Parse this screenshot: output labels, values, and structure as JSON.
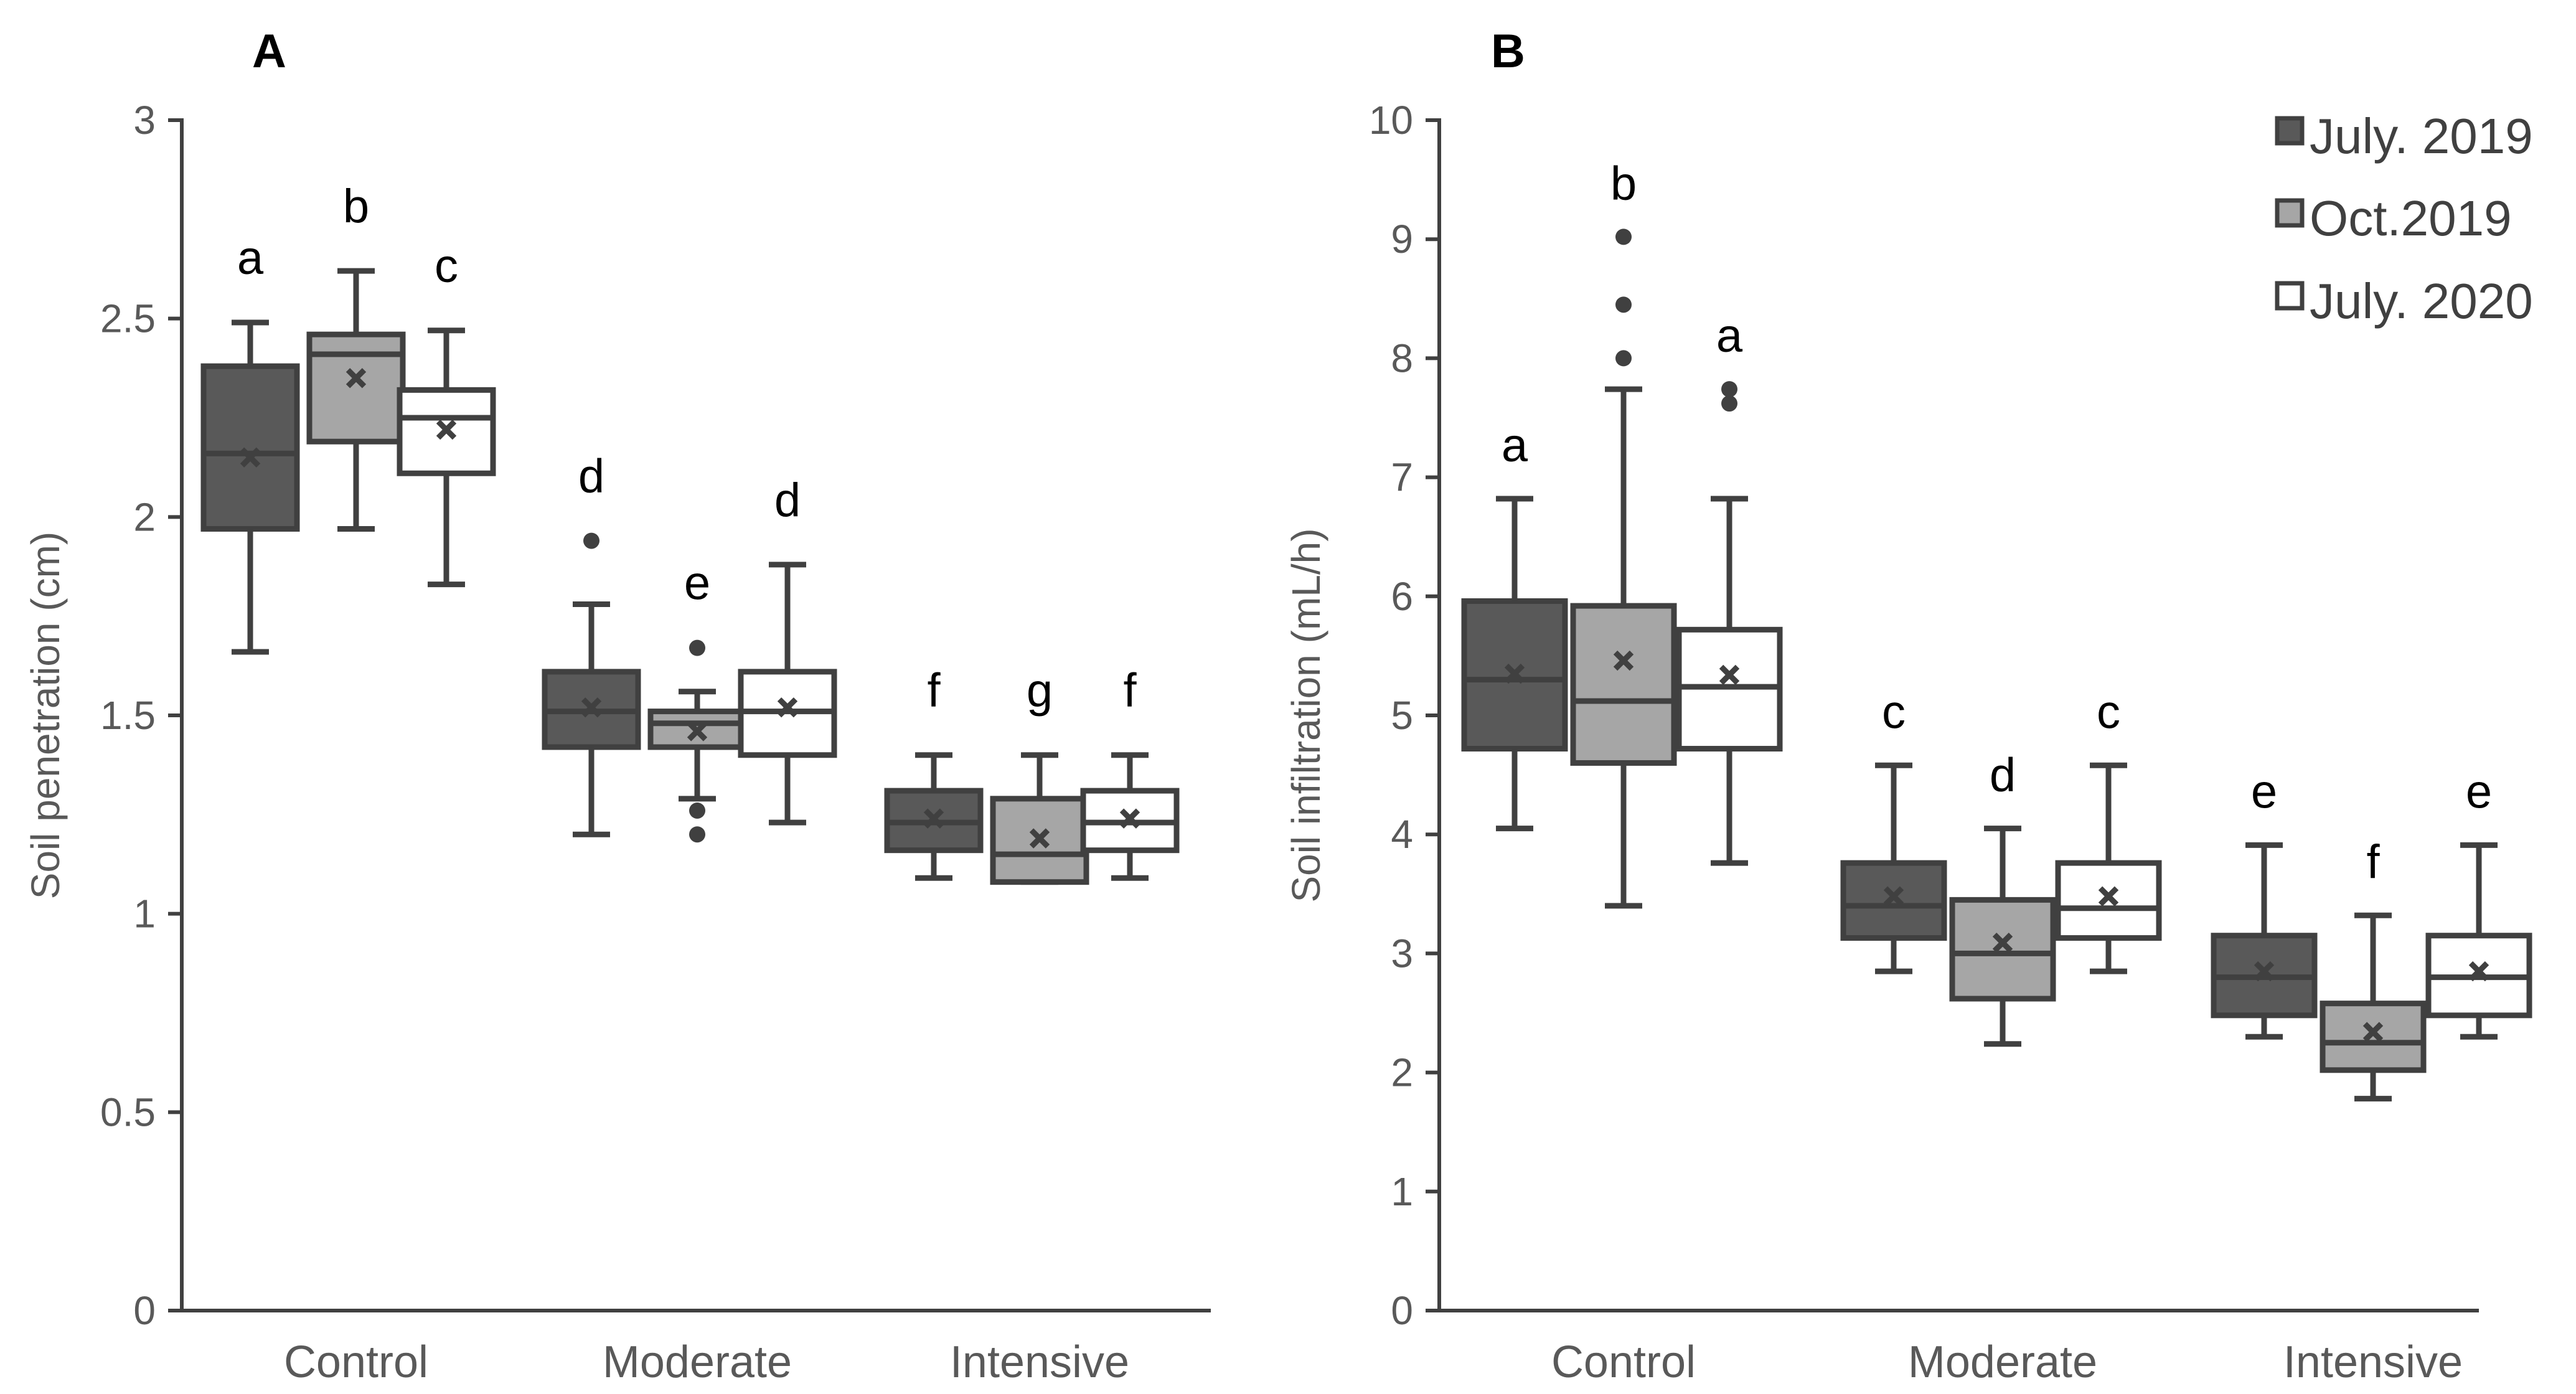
{
  "legend": {
    "items": [
      {
        "label": "July. 2019",
        "color": "#595959"
      },
      {
        "label": "Oct.2019",
        "color": "#a6a6a6"
      },
      {
        "label": "July. 2020",
        "color": "#ffffff"
      }
    ]
  },
  "chart_data": [
    {
      "type": "box",
      "panel_label": "A",
      "title": "",
      "xlabel": "",
      "ylabel": "Soil penetration (cm)",
      "ylim": [
        0,
        3
      ],
      "yticks": [
        0,
        0.5,
        1,
        1.5,
        2,
        2.5,
        3
      ],
      "ytick_labels": [
        "0",
        "0.5",
        "1",
        "1.5",
        "2",
        "2.5",
        "3"
      ],
      "categories": [
        "Control",
        "Moderate",
        "Intensive"
      ],
      "series": [
        {
          "name": "July. 2019",
          "color": "#595959",
          "boxes": [
            {
              "min": 1.66,
              "q1": 1.97,
              "median": 2.16,
              "q3": 2.38,
              "max": 2.49,
              "mean": 2.15,
              "outliers": [],
              "letter": "a"
            },
            {
              "min": 1.2,
              "q1": 1.42,
              "median": 1.51,
              "q3": 1.61,
              "max": 1.78,
              "mean": 1.52,
              "outliers": [
                1.94
              ],
              "letter": "d"
            },
            {
              "min": 1.09,
              "q1": 1.16,
              "median": 1.23,
              "q3": 1.31,
              "max": 1.4,
              "mean": 1.24,
              "outliers": [],
              "letter": "f"
            }
          ]
        },
        {
          "name": "Oct.2019",
          "color": "#a6a6a6",
          "boxes": [
            {
              "min": 1.97,
              "q1": 2.19,
              "median": 2.41,
              "q3": 2.46,
              "max": 2.62,
              "mean": 2.35,
              "outliers": [],
              "letter": "b"
            },
            {
              "min": 1.29,
              "q1": 1.42,
              "median": 1.48,
              "q3": 1.51,
              "max": 1.56,
              "mean": 1.46,
              "outliers": [
                1.67,
                1.26,
                1.2
              ],
              "letter": "e"
            },
            {
              "min": 1.08,
              "q1": 1.08,
              "median": 1.15,
              "q3": 1.29,
              "max": 1.4,
              "mean": 1.19,
              "outliers": [],
              "letter": "g"
            }
          ]
        },
        {
          "name": "July. 2020",
          "color": "#ffffff",
          "boxes": [
            {
              "min": 1.83,
              "q1": 2.11,
              "median": 2.25,
              "q3": 2.32,
              "max": 2.47,
              "mean": 2.22,
              "outliers": [],
              "letter": "c"
            },
            {
              "min": 1.23,
              "q1": 1.4,
              "median": 1.51,
              "q3": 1.61,
              "max": 1.88,
              "mean": 1.52,
              "outliers": [],
              "letter": "d"
            },
            {
              "min": 1.09,
              "q1": 1.16,
              "median": 1.23,
              "q3": 1.31,
              "max": 1.4,
              "mean": 1.24,
              "outliers": [],
              "letter": "f"
            }
          ]
        }
      ]
    },
    {
      "type": "box",
      "panel_label": "B",
      "title": "",
      "xlabel": "",
      "ylabel": "Soil infiltration (mL/h)",
      "ylim": [
        0,
        10
      ],
      "yticks": [
        0,
        1,
        2,
        3,
        4,
        5,
        6,
        7,
        8,
        9,
        10
      ],
      "ytick_labels": [
        "0",
        "1",
        "2",
        "3",
        "4",
        "5",
        "6",
        "7",
        "8",
        "9",
        "10"
      ],
      "categories": [
        "Control",
        "Moderate",
        "Intensive"
      ],
      "series": [
        {
          "name": "July. 2019",
          "color": "#595959",
          "boxes": [
            {
              "min": 4.05,
              "q1": 4.72,
              "median": 5.3,
              "q3": 5.96,
              "max": 6.82,
              "mean": 5.35,
              "outliers": [],
              "letter": "a"
            },
            {
              "min": 2.85,
              "q1": 3.13,
              "median": 3.4,
              "q3": 3.76,
              "max": 4.58,
              "mean": 3.48,
              "outliers": [],
              "letter": "c"
            },
            {
              "min": 2.3,
              "q1": 2.48,
              "median": 2.8,
              "q3": 3.15,
              "max": 3.91,
              "mean": 2.85,
              "outliers": [],
              "letter": "e"
            }
          ]
        },
        {
          "name": "Oct.2019",
          "color": "#a6a6a6",
          "boxes": [
            {
              "min": 3.4,
              "q1": 4.6,
              "median": 5.12,
              "q3": 5.92,
              "max": 7.74,
              "mean": 5.46,
              "outliers": [
                9.02,
                8.45,
                8.0
              ],
              "letter": "b"
            },
            {
              "min": 2.24,
              "q1": 2.62,
              "median": 3.0,
              "q3": 3.45,
              "max": 4.05,
              "mean": 3.09,
              "outliers": [],
              "letter": "d"
            },
            {
              "min": 1.78,
              "q1": 2.02,
              "median": 2.25,
              "q3": 2.58,
              "max": 3.32,
              "mean": 2.34,
              "outliers": [],
              "letter": "f"
            }
          ]
        },
        {
          "name": "July. 2020",
          "color": "#ffffff",
          "boxes": [
            {
              "min": 3.76,
              "q1": 4.72,
              "median": 5.24,
              "q3": 5.72,
              "max": 6.82,
              "mean": 5.34,
              "outliers": [
                7.74,
                7.62
              ],
              "letter": "a"
            },
            {
              "min": 2.85,
              "q1": 3.13,
              "median": 3.38,
              "q3": 3.76,
              "max": 4.58,
              "mean": 3.48,
              "outliers": [],
              "letter": "c"
            },
            {
              "min": 2.3,
              "q1": 2.48,
              "median": 2.8,
              "q3": 3.15,
              "max": 3.91,
              "mean": 2.85,
              "outliers": [],
              "letter": "e"
            }
          ]
        }
      ]
    }
  ]
}
